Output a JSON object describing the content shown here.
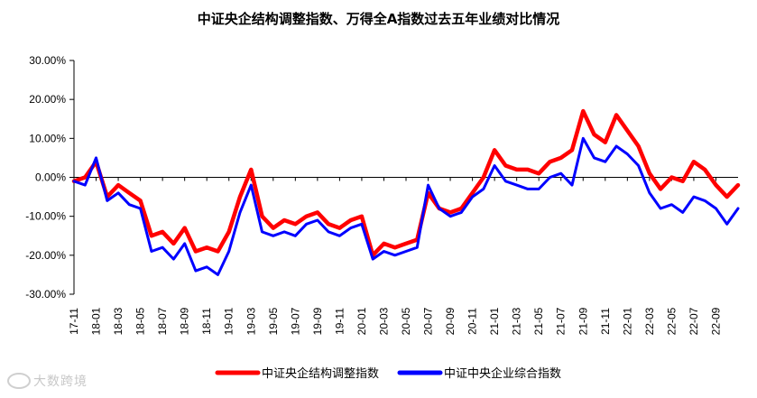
{
  "chart_data": {
    "type": "line",
    "title": "中证央企结构调整指数、万得全A指数过去五年业绩对比情况",
    "ylim": [
      -30,
      30
    ],
    "yticks": [
      30,
      20,
      10,
      0,
      -10,
      -20,
      -30
    ],
    "ytick_labels": [
      "30.00%",
      "20.00%",
      "10.00%",
      "0.00%",
      "-10.00%",
      "-20.00%",
      "-30.00%"
    ],
    "x_range_months": [
      "17-11",
      "22-11"
    ],
    "xtick_labels": [
      "17-11",
      "18-01",
      "18-03",
      "18-05",
      "18-07",
      "18-09",
      "18-11",
      "19-01",
      "19-03",
      "19-05",
      "19-07",
      "19-09",
      "19-11",
      "20-01",
      "20-03",
      "20-05",
      "20-07",
      "20-09",
      "20-11",
      "21-01",
      "21-03",
      "21-05",
      "21-07",
      "21-09",
      "21-11",
      "22-01",
      "22-03",
      "22-05",
      "22-07",
      "22-09"
    ],
    "grid": false,
    "legend_position": "bottom",
    "series": [
      {
        "name": "中证央企结构调整指数",
        "color": "#ff0000",
        "x": [
          "17-11",
          "17-12",
          "18-01",
          "18-02",
          "18-03",
          "18-04",
          "18-05",
          "18-06",
          "18-07",
          "18-08",
          "18-09",
          "18-10",
          "18-11",
          "18-12",
          "19-01",
          "19-02",
          "19-03",
          "19-04",
          "19-05",
          "19-06",
          "19-07",
          "19-08",
          "19-09",
          "19-10",
          "19-11",
          "19-12",
          "20-01",
          "20-02",
          "20-03",
          "20-04",
          "20-05",
          "20-06",
          "20-07",
          "20-08",
          "20-09",
          "20-10",
          "20-11",
          "20-12",
          "21-01",
          "21-02",
          "21-03",
          "21-04",
          "21-05",
          "21-06",
          "21-07",
          "21-08",
          "21-09",
          "21-10",
          "21-11",
          "21-12",
          "22-01",
          "22-02",
          "22-03",
          "22-04",
          "22-05",
          "22-06",
          "22-07",
          "22-08",
          "22-09",
          "22-10",
          "22-11"
        ],
        "y": [
          -1,
          0,
          4,
          -5,
          -2,
          -4,
          -6,
          -15,
          -14,
          -17,
          -13,
          -19,
          -18,
          -19,
          -14,
          -5,
          2,
          -10,
          -13,
          -11,
          -12,
          -10,
          -9,
          -12,
          -13,
          -11,
          -10,
          -20,
          -17,
          -18,
          -17,
          -16,
          -4,
          -8,
          -9,
          -8,
          -4,
          0,
          7,
          3,
          2,
          2,
          1,
          4,
          5,
          7,
          17,
          11,
          9,
          16,
          12,
          8,
          1,
          -3,
          0,
          -1,
          4,
          2,
          -2,
          -5,
          -2
        ]
      },
      {
        "name": "中证中央企业综合指数",
        "color": "#0000ff",
        "x": [
          "17-11",
          "17-12",
          "18-01",
          "18-02",
          "18-03",
          "18-04",
          "18-05",
          "18-06",
          "18-07",
          "18-08",
          "18-09",
          "18-10",
          "18-11",
          "18-12",
          "19-01",
          "19-02",
          "19-03",
          "19-04",
          "19-05",
          "19-06",
          "19-07",
          "19-08",
          "19-09",
          "19-10",
          "19-11",
          "19-12",
          "20-01",
          "20-02",
          "20-03",
          "20-04",
          "20-05",
          "20-06",
          "20-07",
          "20-08",
          "20-09",
          "20-10",
          "20-11",
          "20-12",
          "21-01",
          "21-02",
          "21-03",
          "21-04",
          "21-05",
          "21-06",
          "21-07",
          "21-08",
          "21-09",
          "21-10",
          "21-11",
          "21-12",
          "22-01",
          "22-02",
          "22-03",
          "22-04",
          "22-05",
          "22-06",
          "22-07",
          "22-08",
          "22-09",
          "22-10",
          "22-11"
        ],
        "y": [
          -1,
          -2,
          5,
          -6,
          -4,
          -7,
          -8,
          -19,
          -18,
          -21,
          -17,
          -24,
          -23,
          -25,
          -19,
          -9,
          -2,
          -14,
          -15,
          -14,
          -15,
          -12,
          -11,
          -14,
          -15,
          -13,
          -12,
          -21,
          -19,
          -20,
          -19,
          -18,
          -2,
          -8,
          -10,
          -9,
          -5,
          -3,
          3,
          -1,
          -2,
          -3,
          -3,
          0,
          1,
          -2,
          10,
          5,
          4,
          8,
          6,
          3,
          -4,
          -8,
          -7,
          -9,
          -5,
          -6,
          -8,
          -12,
          -8
        ]
      }
    ]
  },
  "watermark": {
    "text": "大数跨境"
  }
}
